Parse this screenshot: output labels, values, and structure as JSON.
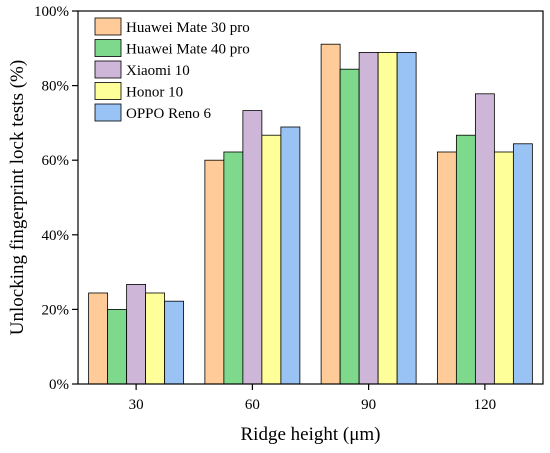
{
  "chart_data": {
    "type": "bar",
    "title": "",
    "xlabel": "Ridge height (μm)",
    "ylabel": "Unlocking fingerprint lock tests (%)",
    "categories": [
      "30",
      "60",
      "90",
      "120"
    ],
    "ylim": [
      0,
      100
    ],
    "yticks": [
      0,
      20,
      40,
      60,
      80,
      100
    ],
    "ytick_suffix": "%",
    "grid": false,
    "legend_position": "top-left",
    "series": [
      {
        "name": "Huawei Mate 30 pro",
        "color": "#FFCC99",
        "values": [
          24.4,
          60.0,
          91.1,
          62.2
        ]
      },
      {
        "name": "Huawei Mate 40 pro",
        "color": "#7FD98C",
        "values": [
          20.0,
          62.2,
          84.4,
          66.7
        ]
      },
      {
        "name": "Xiaomi 10",
        "color": "#CDB6D8",
        "values": [
          26.7,
          73.3,
          88.9,
          77.8
        ]
      },
      {
        "name": "Honor 10",
        "color": "#FFFF99",
        "values": [
          24.4,
          66.7,
          88.9,
          62.2
        ]
      },
      {
        "name": "OPPO Reno 6",
        "color": "#99C2F5",
        "values": [
          22.2,
          68.9,
          88.9,
          64.4
        ]
      }
    ]
  }
}
